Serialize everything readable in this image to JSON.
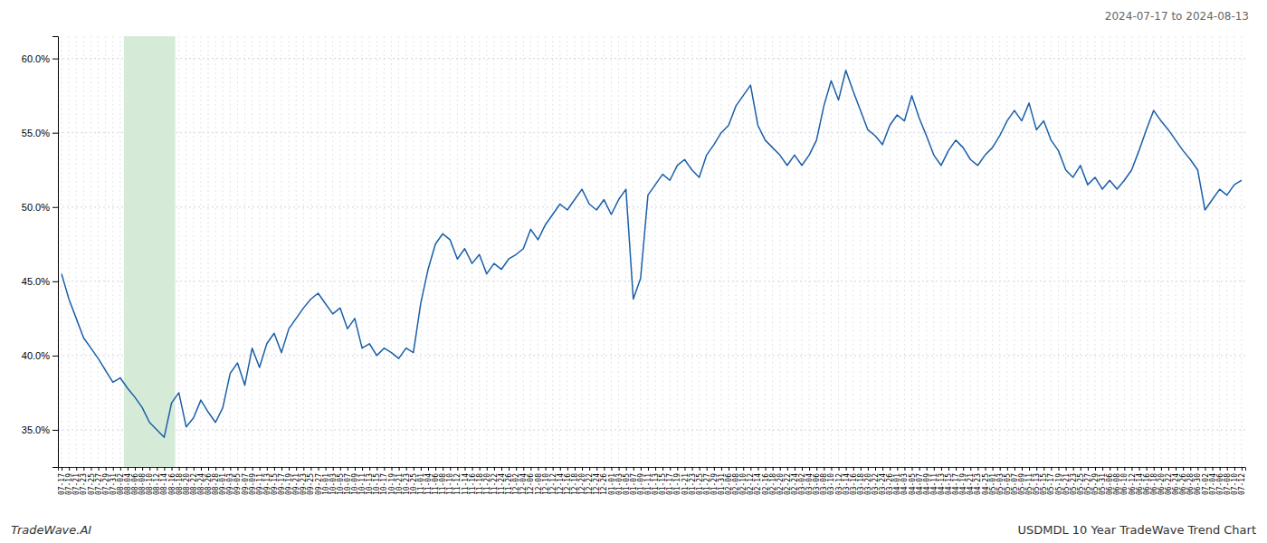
{
  "chart_data": {
    "type": "line",
    "title": "2024-07-17 to 2024-08-13",
    "annotations": [
      "TradeWave.AI",
      "USDMDL 10 Year TradeWave Trend Chart"
    ],
    "color": "#1a5fa8",
    "grid": true,
    "shaded_span": {
      "from": "08-04",
      "to": "08-16",
      "color": "#d6ead8"
    },
    "ylim": [
      32.5,
      61.5
    ],
    "yticks": [
      {
        "value": 35.0,
        "label": "35.0%"
      },
      {
        "value": 40.0,
        "label": "40.0%"
      },
      {
        "value": 45.0,
        "label": "45.0%"
      },
      {
        "value": 50.0,
        "label": "50.0%"
      },
      {
        "value": 55.0,
        "label": "55.0%"
      },
      {
        "value": 60.0,
        "label": "60.0%"
      }
    ],
    "categories": [
      "07-17",
      "07-19",
      "07-21",
      "07-23",
      "07-25",
      "07-27",
      "07-29",
      "07-31",
      "08-02",
      "08-04",
      "08-06",
      "08-08",
      "08-10",
      "08-12",
      "08-14",
      "08-16",
      "08-18",
      "08-20",
      "08-22",
      "08-24",
      "08-26",
      "08-28",
      "09-01",
      "09-03",
      "09-05",
      "09-07",
      "09-09",
      "09-11",
      "09-13",
      "09-15",
      "09-17",
      "09-19",
      "09-21",
      "09-23",
      "09-25",
      "09-27",
      "10-01",
      "10-03",
      "10-05",
      "10-07",
      "10-09",
      "10-11",
      "10-13",
      "10-15",
      "10-17",
      "10-19",
      "10-21",
      "10-23",
      "10-25",
      "11-01",
      "11-04",
      "11-06",
      "11-08",
      "11-10",
      "11-12",
      "11-14",
      "11-16",
      "11-18",
      "11-20",
      "11-22",
      "11-24",
      "11-26",
      "12-02",
      "12-04",
      "12-06",
      "12-08",
      "12-10",
      "12-12",
      "12-14",
      "12-16",
      "12-18",
      "12-20",
      "12-22",
      "12-24",
      "12-26",
      "01-01",
      "01-03",
      "01-05",
      "01-07",
      "01-09",
      "01-11",
      "01-13",
      "01-15",
      "01-17",
      "01-19",
      "01-21",
      "01-23",
      "01-25",
      "01-27",
      "01-29",
      "01-31",
      "02-06",
      "02-08",
      "02-10",
      "02-12",
      "02-14",
      "02-16",
      "02-18",
      "02-20",
      "02-22",
      "02-24",
      "03-02",
      "03-04",
      "03-06",
      "03-08",
      "03-10",
      "03-12",
      "03-14",
      "03-16",
      "03-18",
      "03-20",
      "03-22",
      "03-24",
      "03-26",
      "04-01",
      "04-03",
      "04-05",
      "04-07",
      "04-09",
      "04-11",
      "04-13",
      "04-15",
      "04-17",
      "04-19",
      "04-21",
      "04-23",
      "04-25",
      "05-01",
      "05-03",
      "05-05",
      "05-07",
      "05-09",
      "05-11",
      "05-13",
      "05-15",
      "05-17",
      "05-19",
      "05-21",
      "05-23",
      "05-25",
      "05-27",
      "05-29",
      "05-31",
      "06-06",
      "06-08",
      "06-10",
      "06-12",
      "06-14",
      "06-16",
      "06-18",
      "06-20",
      "06-22",
      "06-24",
      "06-26",
      "06-28",
      "06-30",
      "07-02",
      "07-04",
      "07-06",
      "07-08",
      "07-10",
      "07-12"
    ],
    "values": [
      45.5,
      43.8,
      42.5,
      41.2,
      40.5,
      39.8,
      39.0,
      38.2,
      38.5,
      37.8,
      37.2,
      36.5,
      35.5,
      35.0,
      34.5,
      36.8,
      37.5,
      35.2,
      35.8,
      37.0,
      36.2,
      35.5,
      36.5,
      38.8,
      39.5,
      38.0,
      40.5,
      39.2,
      40.8,
      41.5,
      40.2,
      41.8,
      42.5,
      43.2,
      43.8,
      44.2,
      43.5,
      42.8,
      43.2,
      41.8,
      42.5,
      40.5,
      40.8,
      40.0,
      40.5,
      40.2,
      39.8,
      40.5,
      40.2,
      43.5,
      45.8,
      47.5,
      48.2,
      47.8,
      46.5,
      47.2,
      46.2,
      46.8,
      45.5,
      46.2,
      45.8,
      46.5,
      46.8,
      47.2,
      48.5,
      47.8,
      48.8,
      49.5,
      50.2,
      49.8,
      50.5,
      51.2,
      50.2,
      49.8,
      50.5,
      49.5,
      50.5,
      51.2,
      43.8,
      45.2,
      50.8,
      51.5,
      52.2,
      51.8,
      52.8,
      53.2,
      52.5,
      52.0,
      53.5,
      54.2,
      55.0,
      55.5,
      56.8,
      57.5,
      58.2,
      55.5,
      54.5,
      54.0,
      53.5,
      52.8,
      53.5,
      52.8,
      53.5,
      54.5,
      56.8,
      58.5,
      57.2,
      59.2,
      57.8,
      56.5,
      55.2,
      54.8,
      54.2,
      55.5,
      56.2,
      55.8,
      57.5,
      56.0,
      54.8,
      53.5,
      52.8,
      53.8,
      54.5,
      54.0,
      53.2,
      52.8,
      53.5,
      54.0,
      54.8,
      55.8,
      56.5,
      55.8,
      57.0,
      55.2,
      55.8,
      54.5,
      53.8,
      52.5,
      52.0,
      52.8,
      51.5,
      52.0,
      51.2,
      51.8,
      51.2,
      51.8,
      52.5,
      53.8,
      55.2,
      56.5,
      55.8,
      55.2,
      54.5,
      53.8,
      53.2,
      52.5,
      49.8,
      50.5,
      51.2,
      50.8,
      51.5,
      51.8
    ]
  }
}
